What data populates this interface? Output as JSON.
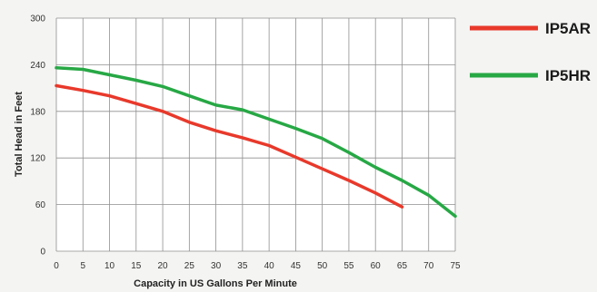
{
  "chart_data": {
    "type": "line",
    "title": "",
    "xlabel": "Capacity in US Gallons Per Minute",
    "ylabel": "Total Head in Feet",
    "xlim": [
      0,
      75
    ],
    "ylim": [
      0,
      300
    ],
    "x_ticks": [
      0,
      5,
      10,
      15,
      20,
      25,
      30,
      35,
      40,
      45,
      50,
      55,
      60,
      65,
      70,
      75
    ],
    "y_ticks": [
      0,
      60,
      120,
      180,
      240,
      300
    ],
    "grid": true,
    "legend_position": "right",
    "series": [
      {
        "name": "IP5AR",
        "color": "#e8392b",
        "points": [
          [
            0,
            213
          ],
          [
            5,
            207
          ],
          [
            10,
            200
          ],
          [
            15,
            190
          ],
          [
            20,
            180
          ],
          [
            25,
            166
          ],
          [
            30,
            155
          ],
          [
            35,
            146
          ],
          [
            40,
            136
          ],
          [
            45,
            121
          ],
          [
            50,
            106
          ],
          [
            55,
            91
          ],
          [
            60,
            75
          ],
          [
            65,
            57
          ]
        ]
      },
      {
        "name": "IP5HR",
        "color": "#27a845",
        "points": [
          [
            0,
            236
          ],
          [
            5,
            234
          ],
          [
            10,
            227
          ],
          [
            15,
            220
          ],
          [
            20,
            212
          ],
          [
            25,
            200
          ],
          [
            30,
            188
          ],
          [
            35,
            182
          ],
          [
            40,
            170
          ],
          [
            45,
            158
          ],
          [
            50,
            145
          ],
          [
            55,
            127
          ],
          [
            60,
            108
          ],
          [
            65,
            91
          ],
          [
            70,
            72
          ],
          [
            75,
            45
          ]
        ]
      }
    ]
  }
}
